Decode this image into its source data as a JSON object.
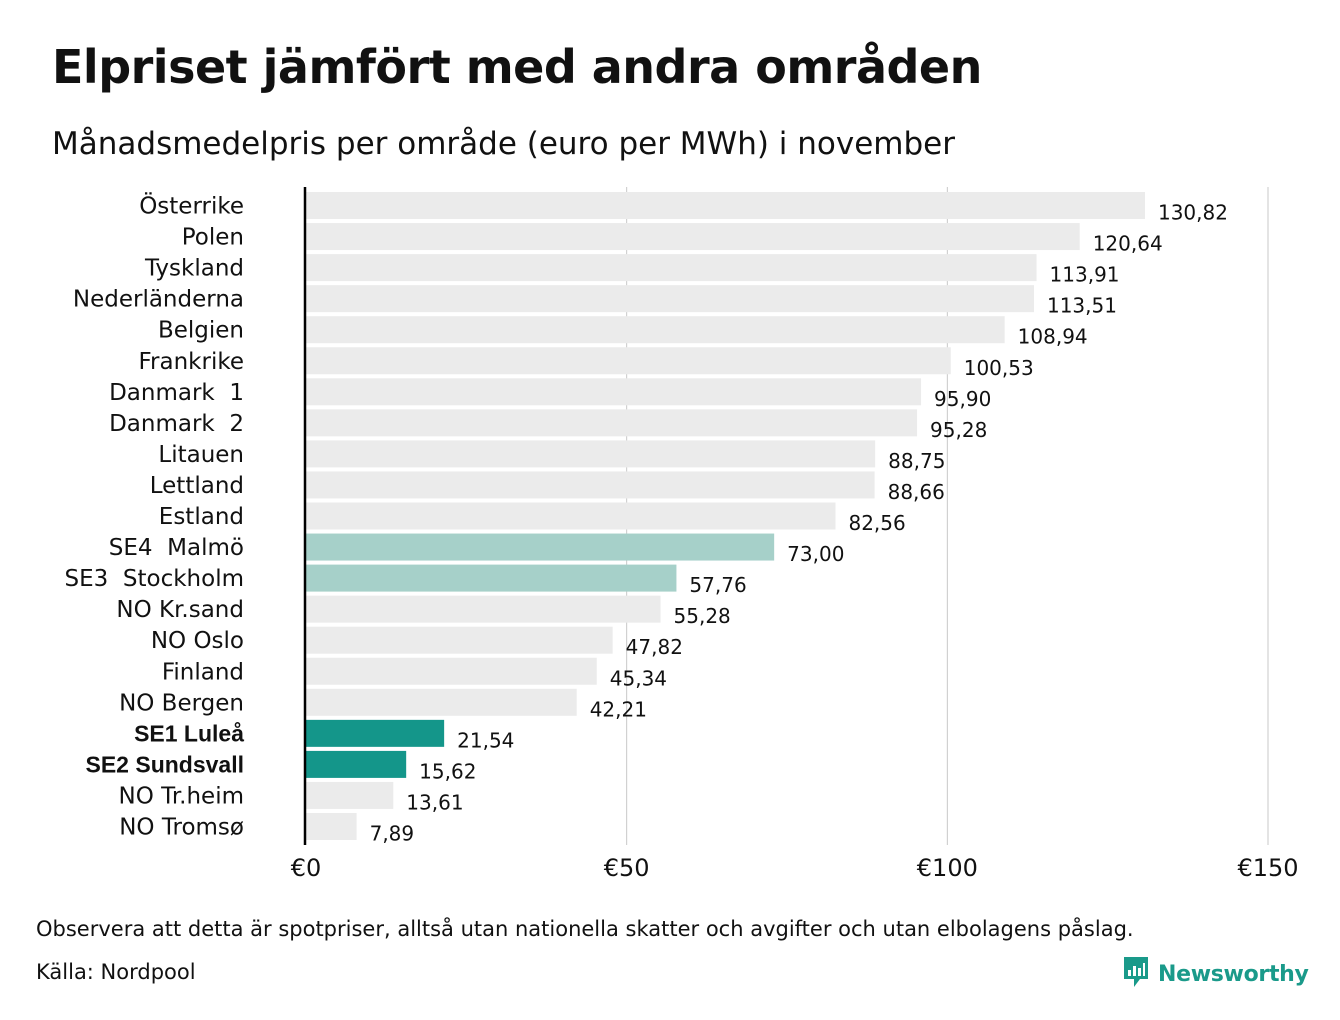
{
  "title": "Elpriset jämfört med andra områden",
  "subtitle": "Månadsmedelpris per område (euro per MWh) i november",
  "note": "Observera att detta är spotpriser, alltså utan nationella skatter och avgifter och utan elbolagens påslag.",
  "source": "Källa: Nordpool",
  "brand": {
    "name": "Newsworthy",
    "logo_icon": "bar-chart-speech-bubble-icon",
    "color": "#1a9a8a"
  },
  "colors": {
    "default_bar": "#ebebeb",
    "highlight_light": "#a6d0c9",
    "highlight_dark": "#14968a",
    "grid": "#c8c8c8",
    "axis": "#000000"
  },
  "chart_data": {
    "type": "bar",
    "orientation": "horizontal",
    "categories": [
      "Österrike",
      "Polen",
      "Tyskland",
      "Nederländerna",
      "Belgien",
      "Frankrike",
      "Danmark  1",
      "Danmark  2",
      "Litauen",
      "Lettland",
      "Estland",
      "SE4  Malmö",
      "SE3  Stockholm",
      "NO Kr.sand",
      "NO Oslo",
      "Finland",
      "NO Bergen",
      "SE1 Luleå",
      "SE2 Sundsvall",
      "NO Tr.heim",
      "NO Tromsø"
    ],
    "values": [
      130.82,
      120.64,
      113.91,
      113.51,
      108.94,
      100.53,
      95.9,
      95.28,
      88.75,
      88.66,
      82.56,
      73.0,
      57.76,
      55.28,
      47.82,
      45.34,
      42.21,
      21.54,
      15.62,
      13.61,
      7.89
    ],
    "value_labels": [
      "130,82",
      "120,64",
      "113,91",
      "113,51",
      "108,94",
      "100,53",
      "95,90",
      "95,28",
      "88,75",
      "88,66",
      "82,56",
      "73,00",
      "57,76",
      "55,28",
      "47,82",
      "45,34",
      "42,21",
      "21,54",
      "15,62",
      "13,61",
      "7,89"
    ],
    "highlight": [
      "none",
      "none",
      "none",
      "none",
      "none",
      "none",
      "none",
      "none",
      "none",
      "none",
      "none",
      "light",
      "light",
      "none",
      "none",
      "none",
      "none",
      "dark",
      "dark",
      "none",
      "none"
    ],
    "bold_labels": [
      false,
      false,
      false,
      false,
      false,
      false,
      false,
      false,
      false,
      false,
      false,
      false,
      false,
      false,
      false,
      false,
      false,
      true,
      true,
      false,
      false
    ],
    "xlim": [
      0,
      150
    ],
    "xticks": [
      0,
      50,
      100,
      150
    ],
    "xtick_labels": [
      "€0",
      "€50",
      "€100",
      "€150"
    ],
    "grid": true
  }
}
